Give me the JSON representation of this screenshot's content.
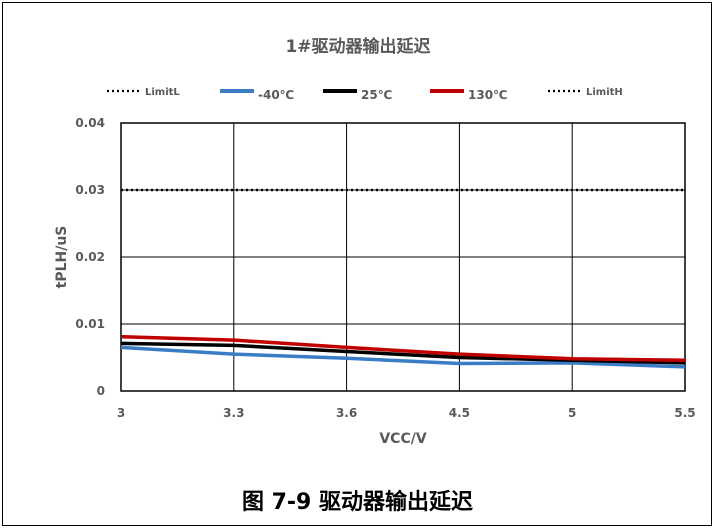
{
  "chart_data": {
    "type": "line",
    "title": "1#驱动器输出延迟",
    "xlabel": "VCC/V",
    "ylabel": "tPLH/uS",
    "categories": [
      "3",
      "3.3",
      "3.6",
      "4.5",
      "5",
      "5.5"
    ],
    "ylim": [
      0,
      0.04
    ],
    "yticks": [
      "0",
      "0.01",
      "0.02",
      "0.03",
      "0.04"
    ],
    "grid": true,
    "legend_position": "top",
    "series": [
      {
        "name": "LimitL",
        "values": [
          0.03,
          0.03,
          0.03,
          0.03,
          0.03,
          0.03
        ],
        "color": "#000000",
        "style": "dotted"
      },
      {
        "name": "-40℃",
        "values": [
          0.0065,
          0.0055,
          0.0049,
          0.0041,
          0.0042,
          0.0036
        ],
        "color": "#3a7dc4",
        "style": "solid"
      },
      {
        "name": "25℃",
        "values": [
          0.0071,
          0.0068,
          0.0059,
          0.005,
          0.0046,
          0.0042
        ],
        "color": "#000000",
        "style": "solid"
      },
      {
        "name": "130℃",
        "values": [
          0.0081,
          0.0076,
          0.0065,
          0.0055,
          0.0048,
          0.0046
        ],
        "color": "#c00000",
        "style": "solid"
      },
      {
        "name": "LimitH",
        "values": [
          0.03,
          0.03,
          0.03,
          0.03,
          0.03,
          0.03
        ],
        "color": "#000000",
        "style": "dotted"
      }
    ]
  },
  "caption": "图 7-9 驱动器输出延迟"
}
